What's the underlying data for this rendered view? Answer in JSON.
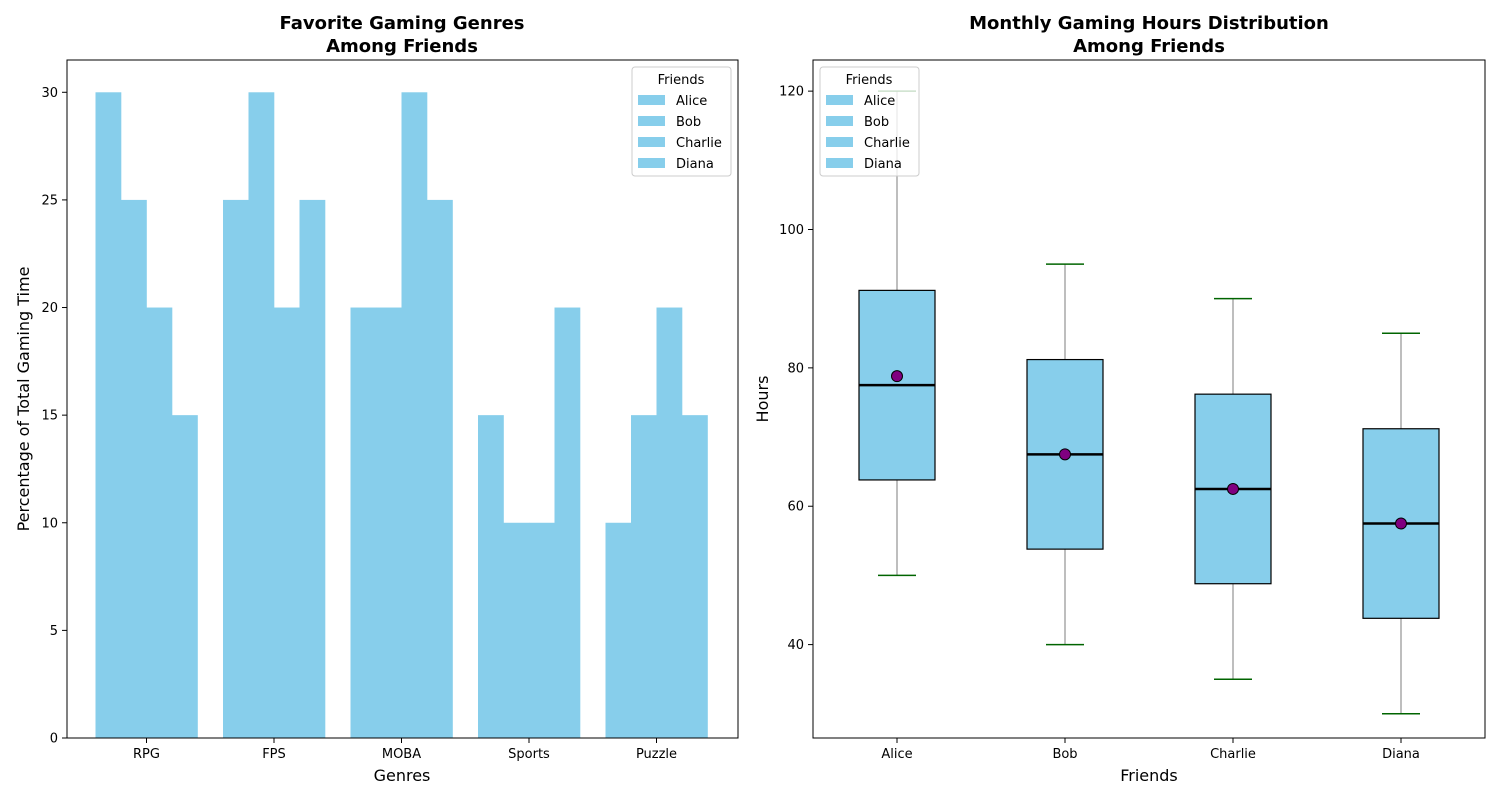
{
  "chart_data": [
    {
      "type": "bar",
      "title": [
        "Favorite Gaming Genres",
        "Among Friends"
      ],
      "xlabel": "Genres",
      "ylabel": "Percentage of Total Gaming Time",
      "categories": [
        "RPG",
        "FPS",
        "MOBA",
        "Sports",
        "Puzzle"
      ],
      "series": [
        {
          "name": "Alice",
          "values": [
            30,
            25,
            20,
            15,
            10
          ]
        },
        {
          "name": "Bob",
          "values": [
            25,
            30,
            20,
            10,
            15
          ]
        },
        {
          "name": "Charlie",
          "values": [
            20,
            20,
            30,
            10,
            20
          ]
        },
        {
          "name": "Diana",
          "values": [
            15,
            25,
            25,
            20,
            15
          ]
        }
      ],
      "ylim": [
        0,
        31.5
      ],
      "yticks": [
        0,
        5,
        10,
        15,
        20,
        25,
        30
      ],
      "legend": {
        "title": "Friends",
        "placement": "top-right"
      },
      "grid": false,
      "bar_color": "#87CEEB"
    },
    {
      "type": "box",
      "title": [
        "Monthly Gaming Hours Distribution",
        "Among Friends"
      ],
      "xlabel": "Friends",
      "ylabel": "Hours",
      "categories": [
        "Alice",
        "Bob",
        "Charlie",
        "Diana"
      ],
      "boxes": [
        {
          "name": "Alice",
          "whisker_low": 50,
          "q1": 63.8,
          "median": 77.5,
          "q3": 91.2,
          "whisker_high": 120,
          "mean": 78.8
        },
        {
          "name": "Bob",
          "whisker_low": 40,
          "q1": 53.8,
          "median": 67.5,
          "q3": 81.2,
          "whisker_high": 95,
          "mean": 67.5
        },
        {
          "name": "Charlie",
          "whisker_low": 35,
          "q1": 48.8,
          "median": 62.5,
          "q3": 76.2,
          "whisker_high": 90,
          "mean": 62.5
        },
        {
          "name": "Diana",
          "whisker_low": 30,
          "q1": 43.8,
          "median": 57.5,
          "q3": 71.2,
          "whisker_high": 85,
          "mean": 57.5
        }
      ],
      "ylim": [
        26.5,
        124.5
      ],
      "yticks": [
        40,
        60,
        80,
        100,
        120
      ],
      "legend": {
        "title": "Friends",
        "placement": "top-left",
        "entries": [
          "Alice",
          "Bob",
          "Charlie",
          "Diana"
        ]
      },
      "grid": false,
      "box_color": "#87CEEB",
      "whisker_color": "#A9A9A9",
      "cap_color": "#006400",
      "median_color": "#000000",
      "mean_color": "#800080"
    }
  ]
}
